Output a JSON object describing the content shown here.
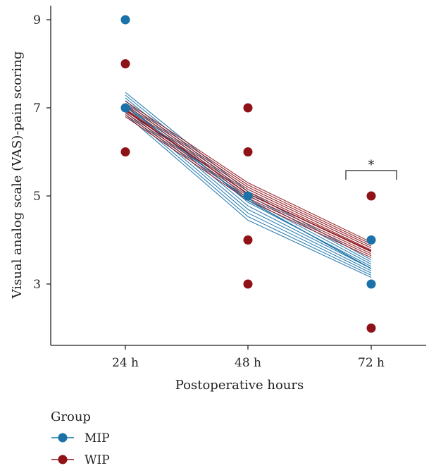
{
  "chart_data": {
    "type": "line",
    "xlabel": "Postoperative hours",
    "ylabel": "Visual analog scale (VAS)-pain scoring",
    "categories": [
      "24 h",
      "48 h",
      "72 h"
    ],
    "yticks": [
      3,
      5,
      7,
      9
    ],
    "ylim": [
      1.6,
      9.7
    ],
    "legend": {
      "title": "Group",
      "position": "bottom-left"
    },
    "series": [
      {
        "name": "MIP",
        "color": "#1a72a8",
        "mean_line": [
          7.05,
          4.9,
          3.35
        ],
        "band": {
          "lower": [
            6.85,
            4.45,
            3.15
          ],
          "upper": [
            7.35,
            5.1,
            3.55
          ]
        },
        "points": [
          {
            "x": "24 h",
            "y": 9
          },
          {
            "x": "24 h",
            "y": 7
          },
          {
            "x": "48 h",
            "y": 5
          },
          {
            "x": "72 h",
            "y": 4
          },
          {
            "x": "72 h",
            "y": 3
          }
        ]
      },
      {
        "name": "WIP",
        "color": "#8e1218",
        "mean_line": [
          6.95,
          5.05,
          3.75
        ],
        "band": {
          "lower": [
            6.8,
            4.9,
            3.6
          ],
          "upper": [
            7.15,
            5.3,
            3.95
          ]
        },
        "points": [
          {
            "x": "24 h",
            "y": 8
          },
          {
            "x": "24 h",
            "y": 6
          },
          {
            "x": "48 h",
            "y": 7
          },
          {
            "x": "48 h",
            "y": 6
          },
          {
            "x": "48 h",
            "y": 4
          },
          {
            "x": "48 h",
            "y": 3
          },
          {
            "x": "72 h",
            "y": 5
          },
          {
            "x": "72 h",
            "y": 2
          }
        ]
      }
    ],
    "annotations": [
      {
        "text": "*",
        "type": "significance-bracket",
        "at": "72 h"
      }
    ]
  }
}
